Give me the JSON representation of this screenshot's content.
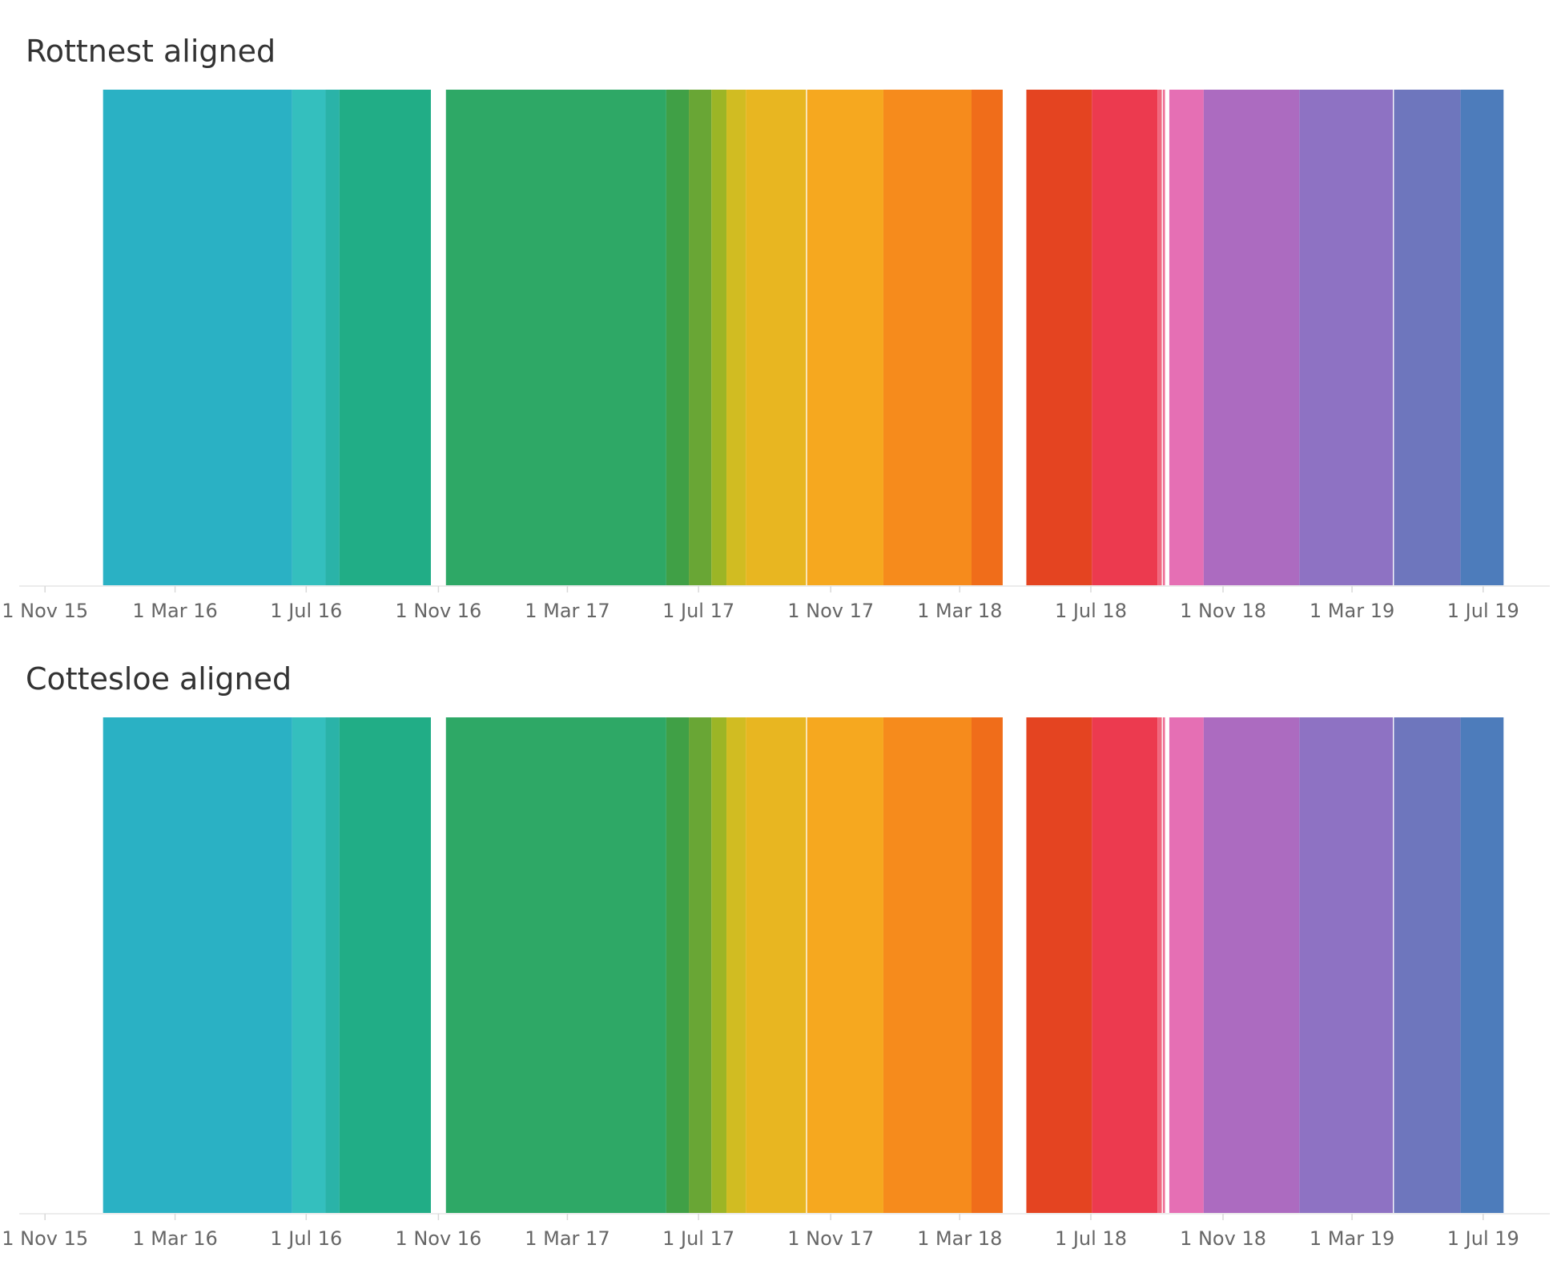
{
  "chart_data": [
    {
      "type": "timeline",
      "title": "Rottnest aligned",
      "x_ticks": [
        "1 Nov 15",
        "1 Mar 16",
        "1 Jul 16",
        "1 Nov 16",
        "1 Mar 17",
        "1 Jul 17",
        "1 Nov 17",
        "1 Mar 18",
        "1 Jul 18",
        "1 Nov 18",
        "1 Mar 19",
        "1 Jul 19"
      ],
      "x_range": [
        "2015-10-08",
        "2019-09-01"
      ],
      "grid": false,
      "legend": "none",
      "segments": [
        {
          "start": "2015-12-25",
          "end": "2016-06-18",
          "color": "#2ab1c4"
        },
        {
          "start": "2016-06-18",
          "end": "2016-07-19",
          "color": "#34bfbe"
        },
        {
          "start": "2016-07-19",
          "end": "2016-08-01",
          "color": "#2ab3a8"
        },
        {
          "start": "2016-08-01",
          "end": "2016-10-25",
          "color": "#21ad86"
        },
        {
          "start": "2016-11-08",
          "end": "2017-06-01",
          "color": "#2ea866"
        },
        {
          "start": "2017-06-01",
          "end": "2017-06-22",
          "color": "#40a046"
        },
        {
          "start": "2017-06-22",
          "end": "2017-07-13",
          "color": "#69a635"
        },
        {
          "start": "2017-07-13",
          "end": "2017-07-27",
          "color": "#9cb526"
        },
        {
          "start": "2017-07-27",
          "end": "2017-08-14",
          "color": "#d1bc22"
        },
        {
          "start": "2017-08-14",
          "end": "2017-10-09",
          "color": "#e8b621"
        },
        {
          "start": "2017-10-10",
          "end": "2017-12-20",
          "color": "#f6a81f"
        },
        {
          "start": "2017-12-20",
          "end": "2018-03-12",
          "color": "#f68b1c"
        },
        {
          "start": "2018-03-12",
          "end": "2018-04-10",
          "color": "#f06d1a"
        },
        {
          "start": "2018-05-02",
          "end": "2018-07-02",
          "color": "#e44421"
        },
        {
          "start": "2018-07-02",
          "end": "2018-09-01",
          "color": "#ec3a4f"
        },
        {
          "start": "2018-09-01",
          "end": "2018-09-05",
          "color": "#f0677e"
        },
        {
          "start": "2018-09-06",
          "end": "2018-09-08",
          "color": "#ef6f98"
        },
        {
          "start": "2018-09-12",
          "end": "2018-10-14",
          "color": "#e56fb4"
        },
        {
          "start": "2018-10-14",
          "end": "2019-01-11",
          "color": "#ac6bc0"
        },
        {
          "start": "2019-01-11",
          "end": "2019-04-08",
          "color": "#8e72c3"
        },
        {
          "start": "2019-04-09",
          "end": "2019-06-10",
          "color": "#6e76bd"
        },
        {
          "start": "2019-06-10",
          "end": "2019-07-20",
          "color": "#4d7cbb"
        }
      ]
    },
    {
      "type": "timeline",
      "title": "Cottesloe aligned",
      "x_ticks": [
        "1 Nov 15",
        "1 Mar 16",
        "1 Jul 16",
        "1 Nov 16",
        "1 Mar 17",
        "1 Jul 17",
        "1 Nov 17",
        "1 Mar 18",
        "1 Jul 18",
        "1 Nov 18",
        "1 Mar 19",
        "1 Jul 19"
      ],
      "x_range": [
        "2015-10-08",
        "2019-09-01"
      ],
      "grid": false,
      "legend": "none",
      "segments": [
        {
          "start": "2015-12-25",
          "end": "2016-06-18",
          "color": "#2ab1c4"
        },
        {
          "start": "2016-06-18",
          "end": "2016-07-19",
          "color": "#34bfbe"
        },
        {
          "start": "2016-07-19",
          "end": "2016-08-01",
          "color": "#2ab3a8"
        },
        {
          "start": "2016-08-01",
          "end": "2016-10-25",
          "color": "#21ad86"
        },
        {
          "start": "2016-11-08",
          "end": "2017-06-01",
          "color": "#2ea866"
        },
        {
          "start": "2017-06-01",
          "end": "2017-06-22",
          "color": "#40a046"
        },
        {
          "start": "2017-06-22",
          "end": "2017-07-13",
          "color": "#69a635"
        },
        {
          "start": "2017-07-13",
          "end": "2017-07-27",
          "color": "#9cb526"
        },
        {
          "start": "2017-07-27",
          "end": "2017-08-14",
          "color": "#d1bc22"
        },
        {
          "start": "2017-08-14",
          "end": "2017-10-09",
          "color": "#e8b621"
        },
        {
          "start": "2017-10-10",
          "end": "2017-12-20",
          "color": "#f6a81f"
        },
        {
          "start": "2017-12-20",
          "end": "2018-03-12",
          "color": "#f68b1c"
        },
        {
          "start": "2018-03-12",
          "end": "2018-04-10",
          "color": "#f06d1a"
        },
        {
          "start": "2018-05-02",
          "end": "2018-07-02",
          "color": "#e44421"
        },
        {
          "start": "2018-07-02",
          "end": "2018-09-01",
          "color": "#ec3a4f"
        },
        {
          "start": "2018-09-01",
          "end": "2018-09-05",
          "color": "#f0677e"
        },
        {
          "start": "2018-09-06",
          "end": "2018-09-08",
          "color": "#ef6f98"
        },
        {
          "start": "2018-09-12",
          "end": "2018-10-14",
          "color": "#e56fb4"
        },
        {
          "start": "2018-10-14",
          "end": "2019-01-11",
          "color": "#ac6bc0"
        },
        {
          "start": "2019-01-11",
          "end": "2019-04-08",
          "color": "#8e72c3"
        },
        {
          "start": "2019-04-09",
          "end": "2019-06-10",
          "color": "#6e76bd"
        },
        {
          "start": "2019-06-10",
          "end": "2019-07-20",
          "color": "#4d7cbb"
        }
      ]
    }
  ]
}
